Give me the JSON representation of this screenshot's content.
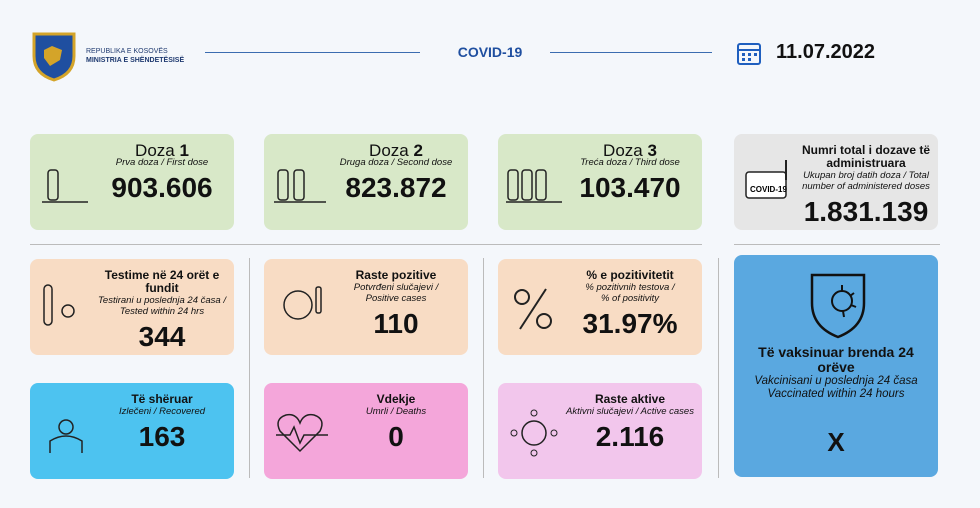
{
  "header": {
    "org_line1": "REPUBLIKA E KOSOVËS",
    "org_line2": "MINISTRIA E SHËNDETËSISË",
    "badge": "COVID-19",
    "date": "11.07.2022"
  },
  "cards": [
    {
      "title": "Doza",
      "title_number": "1",
      "subtitle": [
        "Prva doza / First dose"
      ],
      "value": "903.606"
    },
    {
      "title": "Doza",
      "title_number": "2",
      "subtitle": [
        "Druga doza / Second dose"
      ],
      "value": "823.872"
    },
    {
      "title": "Doza",
      "title_number": "3",
      "subtitle": [
        "Treća doza / Third dose"
      ],
      "value": "103.470"
    },
    {
      "title": "Numri total i dozave të administruara",
      "subtitle": [
        "Ukupan broj datih doza / Total",
        "number of administered doses"
      ],
      "value": "1.831.139",
      "icon_label": "COVID-19"
    },
    {
      "title": "Testime në 24 orët e fundit",
      "subtitle": [
        "Testirani u poslednja 24 časa /",
        "Tested within 24 hrs"
      ],
      "value": "344"
    },
    {
      "title": "Raste pozitive",
      "subtitle": [
        "Potvrđeni slučajevi /",
        "Positive cases"
      ],
      "value": "110"
    },
    {
      "title": "% e pozitivitetit",
      "subtitle": [
        "% pozitivnih testova /",
        "% of positivity"
      ],
      "value": "31.97%"
    },
    {
      "title": "Të shëruar",
      "subtitle": [
        "Izlečeni / Recovered"
      ],
      "value": "163"
    },
    {
      "title": "Vdekje",
      "subtitle": [
        "Umrli / Deaths"
      ],
      "value": "0"
    },
    {
      "title": "Raste aktive",
      "subtitle": [
        "Aktivni slučajevi / Active cases"
      ],
      "value": "2.116"
    }
  ],
  "vaccinated": {
    "title": "Të vaksinuar brenda 24 orëve",
    "subtitle": [
      "Vakcinisani u poslednja 24 časa",
      "Vaccinated within 24 hours"
    ],
    "value": "X"
  }
}
